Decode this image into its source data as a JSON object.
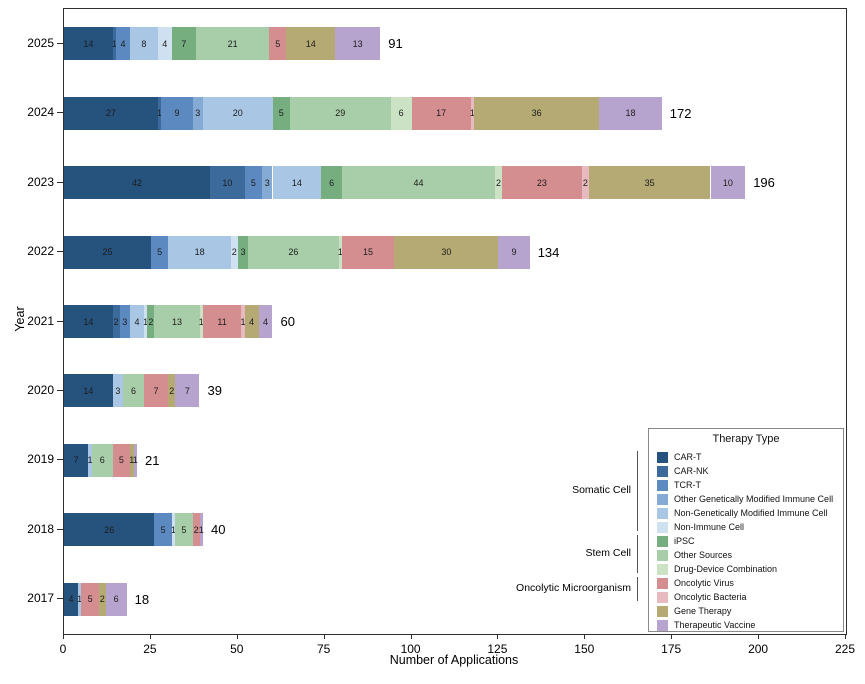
{
  "chart_data": {
    "type": "bar",
    "orientation": "horizontal",
    "stacked": true,
    "title": "",
    "xlabel": "Number of Applications",
    "ylabel": "Year",
    "xlim": [
      0,
      225
    ],
    "x_ticks": [
      0,
      25,
      50,
      75,
      100,
      125,
      150,
      175,
      200,
      225
    ],
    "grid": false,
    "categories": [
      "2025",
      "2024",
      "2023",
      "2022",
      "2021",
      "2020",
      "2019",
      "2018",
      "2017"
    ],
    "totals": [
      91,
      172,
      196,
      134,
      60,
      39,
      21,
      40,
      18
    ],
    "legend_title": "Therapy Type",
    "legend_position": "lower right",
    "series": [
      {
        "name": "CAR-T",
        "color": "#26527e",
        "values": [
          14,
          27,
          42,
          25,
          14,
          14,
          7,
          26,
          4
        ]
      },
      {
        "name": "CAR-NK",
        "color": "#3c6b9b",
        "values": [
          1,
          1,
          10,
          0,
          2,
          0,
          0,
          0,
          0
        ]
      },
      {
        "name": "TCR-T",
        "color": "#5c8ac0",
        "values": [
          4,
          9,
          5,
          5,
          3,
          0,
          0,
          5,
          0
        ]
      },
      {
        "name": "Other Genetically Modified Immune Cell",
        "color": "#85aad3",
        "values": [
          0,
          3,
          3,
          0,
          0,
          0,
          0,
          0,
          0
        ]
      },
      {
        "name": "Non-Genetically Modified Immune Cell",
        "color": "#a9c7e4",
        "values": [
          8,
          20,
          14,
          18,
          4,
          3,
          1,
          0,
          1
        ]
      },
      {
        "name": "Non-Immune Cell",
        "color": "#cfe0f1",
        "values": [
          4,
          0,
          0,
          2,
          1,
          0,
          0,
          1,
          0
        ]
      },
      {
        "name": "iPSC",
        "color": "#77ae80",
        "values": [
          7,
          5,
          6,
          3,
          2,
          0,
          0,
          0,
          0
        ]
      },
      {
        "name": "Other Sources",
        "color": "#a7cea8",
        "values": [
          21,
          29,
          44,
          26,
          13,
          6,
          6,
          5,
          0
        ]
      },
      {
        "name": "Drug-Device Combination",
        "color": "#cbe2c5",
        "values": [
          0,
          6,
          2,
          1,
          1,
          0,
          0,
          0,
          0
        ]
      },
      {
        "name": "Oncolytic Virus",
        "color": "#d48e90",
        "values": [
          5,
          17,
          23,
          15,
          11,
          7,
          5,
          2,
          5
        ]
      },
      {
        "name": "Oncolytic Bacteria",
        "color": "#e6babf",
        "values": [
          0,
          1,
          2,
          0,
          1,
          0,
          0,
          0,
          0
        ]
      },
      {
        "name": "Gene Therapy",
        "color": "#b5aa73",
        "values": [
          14,
          36,
          35,
          30,
          4,
          2,
          1,
          0,
          2
        ]
      },
      {
        "name": "Therapeutic Vaccine",
        "color": "#b7a4ce",
        "values": [
          13,
          18,
          10,
          9,
          4,
          7,
          1,
          1,
          6
        ]
      }
    ],
    "legend_groups": [
      {
        "label": "Somatic Cell",
        "start": 0,
        "end": 5
      },
      {
        "label": "Stem Cell",
        "start": 6,
        "end": 8
      },
      {
        "label": "Oncolytic Microorganism",
        "start": 9,
        "end": 10
      }
    ]
  }
}
